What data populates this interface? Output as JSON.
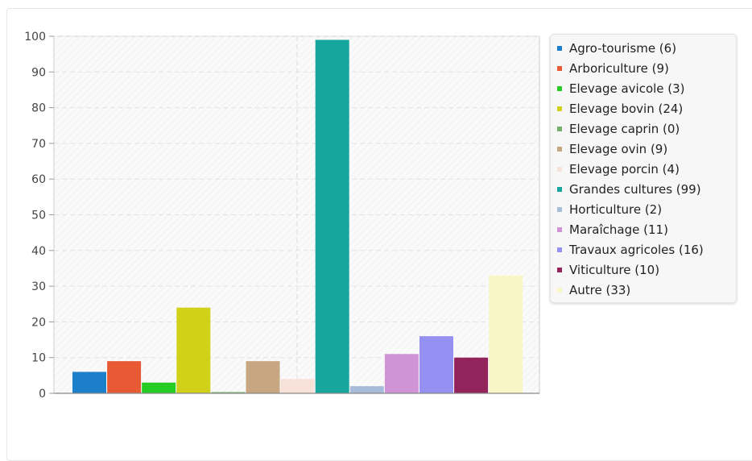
{
  "chart_data": {
    "type": "bar",
    "categories": [
      "Agro-tourisme",
      "Arboriculture",
      "Elevage avicole",
      "Elevage bovin",
      "Elevage caprin",
      "Elevage ovin",
      "Elevage porcin",
      "Grandes cultures",
      "Horticulture",
      "Maraîchage",
      "Travaux agricoles",
      "Viticulture",
      "Autre"
    ],
    "values": [
      6,
      9,
      3,
      24,
      0,
      9,
      4,
      99,
      2,
      11,
      16,
      10,
      33
    ],
    "colors": [
      "#1b7fcc",
      "#e85a34",
      "#24cc24",
      "#d1d11a",
      "#77b06b",
      "#c7a682",
      "#f7e1d9",
      "#17a69e",
      "#a6bcd9",
      "#d093d6",
      "#9491f2",
      "#93245b",
      "#f8f6c7"
    ],
    "legend_labels": [
      "Agro-tourisme (6)",
      "Arboriculture (9)",
      "Elevage avicole (3)",
      "Elevage bovin (24)",
      "Elevage caprin (0)",
      "Elevage ovin (9)",
      "Elevage porcin (4)",
      "Grandes cultures (99)",
      "Horticulture (2)",
      "Maraîchage (11)",
      "Travaux agricoles (16)",
      "Viticulture (10)",
      "Autre (33)"
    ],
    "y_ticks": [
      "0",
      "10",
      "20",
      "30",
      "40",
      "50",
      "60",
      "70",
      "80",
      "90",
      "100"
    ],
    "ylim": [
      0,
      100
    ],
    "title": "",
    "xlabel": "",
    "ylabel": "",
    "grid": true,
    "legend_position": "right"
  }
}
